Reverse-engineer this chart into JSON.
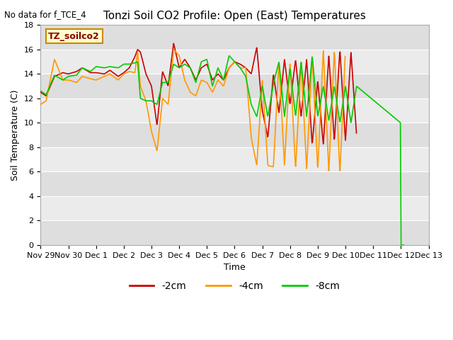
{
  "title": "Tonzi Soil CO2 Profile: Open (East) Temperatures",
  "subtitle": "No data for f_TCE_4",
  "ylabel": "Soil Temperature (C)",
  "xlabel": "Time",
  "box_label": "TZ_soilco2",
  "ylim": [
    0,
    18
  ],
  "yticks": [
    0,
    2,
    4,
    6,
    8,
    10,
    12,
    14,
    16,
    18
  ],
  "xtick_labels": [
    "Nov 29",
    "Nov 30",
    "Dec 1",
    "Dec 2",
    "Dec 3",
    "Dec 4",
    "Dec 5",
    "Dec 6",
    "Dec 7",
    "Dec 8",
    "Dec 9",
    "Dec 10",
    "Dec 11",
    "Dec 12",
    "Dec 13"
  ],
  "legend_labels": [
    "-2cm",
    "-4cm",
    "-8cm"
  ],
  "colors": {
    "cm2": "#cc0000",
    "cm4": "#ff9900",
    "cm8": "#00cc00"
  },
  "figsize": [
    6.4,
    4.8
  ],
  "dpi": 100,
  "red_x": [
    0,
    0.2,
    0.5,
    0.8,
    1.0,
    1.3,
    1.5,
    1.8,
    2.0,
    2.3,
    2.5,
    2.8,
    3.0,
    3.2,
    3.4,
    3.5,
    3.6,
    3.8,
    4.0,
    4.2,
    4.4,
    4.6,
    4.8,
    5.0,
    5.2,
    5.4,
    5.6,
    5.8,
    6.0,
    6.2,
    6.4,
    6.6,
    6.8,
    7.0,
    7.2,
    7.4,
    7.6,
    7.8,
    8.0,
    8.2,
    8.4,
    8.6,
    8.8,
    9.0,
    9.2,
    9.4,
    9.6,
    9.8,
    10.0,
    10.2,
    10.4,
    10.6,
    10.8,
    11.0,
    11.2,
    11.4
  ],
  "red_y": [
    12.5,
    12.2,
    13.8,
    14.1,
    14.0,
    14.2,
    14.5,
    14.1,
    14.1,
    14.0,
    14.3,
    13.8,
    14.1,
    14.5,
    15.4,
    16.0,
    15.8,
    14.0,
    13.0,
    9.8,
    14.2,
    13.0,
    16.5,
    14.5,
    15.2,
    14.5,
    13.5,
    14.5,
    14.8,
    13.5,
    14.0,
    13.5,
    14.5,
    15.0,
    14.8,
    14.5,
    14.0,
    16.2,
    11.0,
    8.8,
    14.0,
    10.8,
    15.2,
    11.5,
    15.2,
    10.5,
    15.2,
    8.2,
    13.5,
    8.2,
    15.5,
    8.5,
    16.0,
    8.5,
    15.8,
    9.0
  ],
  "orange_x": [
    0,
    0.2,
    0.5,
    0.8,
    1.0,
    1.3,
    1.5,
    1.8,
    2.0,
    2.3,
    2.5,
    2.8,
    3.0,
    3.2,
    3.4,
    3.5,
    3.6,
    3.8,
    4.0,
    4.2,
    4.4,
    4.6,
    4.8,
    5.0,
    5.2,
    5.4,
    5.6,
    5.8,
    6.0,
    6.2,
    6.4,
    6.6,
    6.8,
    7.0,
    7.2,
    7.4,
    7.6,
    7.8,
    8.0,
    8.2,
    8.4,
    8.6,
    8.8,
    9.0,
    9.2,
    9.4,
    9.6,
    9.8,
    10.0,
    10.2,
    10.4,
    10.6,
    10.8,
    11.0
  ],
  "orange_y": [
    11.5,
    11.8,
    15.2,
    13.5,
    13.5,
    13.3,
    13.8,
    13.6,
    13.5,
    13.8,
    14.0,
    13.5,
    14.0,
    14.2,
    14.1,
    15.8,
    13.0,
    11.8,
    9.3,
    7.7,
    12.0,
    11.5,
    16.0,
    15.5,
    13.5,
    12.5,
    12.2,
    13.5,
    13.3,
    12.5,
    13.5,
    13.0,
    14.5,
    15.0,
    14.5,
    14.5,
    8.8,
    6.5,
    13.5,
    6.5,
    6.4,
    15.0,
    6.5,
    15.0,
    6.2,
    15.0,
    6.2,
    15.5,
    6.1,
    16.0,
    6.0,
    16.0,
    5.8,
    16.0
  ],
  "green_x": [
    0,
    0.2,
    0.5,
    0.8,
    1.0,
    1.3,
    1.5,
    1.8,
    2.0,
    2.3,
    2.5,
    2.8,
    3.0,
    3.2,
    3.4,
    3.5,
    3.6,
    3.8,
    4.0,
    4.2,
    4.4,
    4.6,
    4.8,
    5.0,
    5.2,
    5.4,
    5.6,
    5.8,
    6.0,
    6.2,
    6.4,
    6.6,
    6.8,
    7.0,
    7.2,
    7.4,
    7.6,
    7.8,
    8.0,
    8.2,
    8.4,
    8.6,
    8.8,
    9.0,
    9.2,
    9.4,
    9.6,
    9.8,
    10.0,
    10.2,
    10.4,
    10.6,
    10.8,
    11.0,
    11.2,
    11.4,
    12.99,
    13.0,
    13.1
  ],
  "green_y": [
    12.6,
    12.3,
    13.9,
    13.5,
    13.8,
    13.9,
    14.5,
    14.2,
    14.6,
    14.5,
    14.6,
    14.5,
    14.8,
    14.8,
    14.9,
    15.0,
    12.0,
    11.8,
    11.8,
    11.5,
    13.3,
    13.3,
    14.8,
    14.5,
    14.8,
    14.5,
    13.3,
    15.0,
    15.2,
    13.0,
    14.5,
    13.5,
    15.5,
    15.0,
    14.5,
    13.8,
    11.5,
    10.5,
    13.0,
    10.5,
    13.2,
    15.0,
    10.5,
    14.5,
    10.5,
    15.0,
    10.5,
    15.5,
    10.5,
    13.0,
    10.2,
    13.0,
    10.0,
    13.0,
    10.0,
    13.0,
    10.0,
    0.0,
    0.0
  ]
}
